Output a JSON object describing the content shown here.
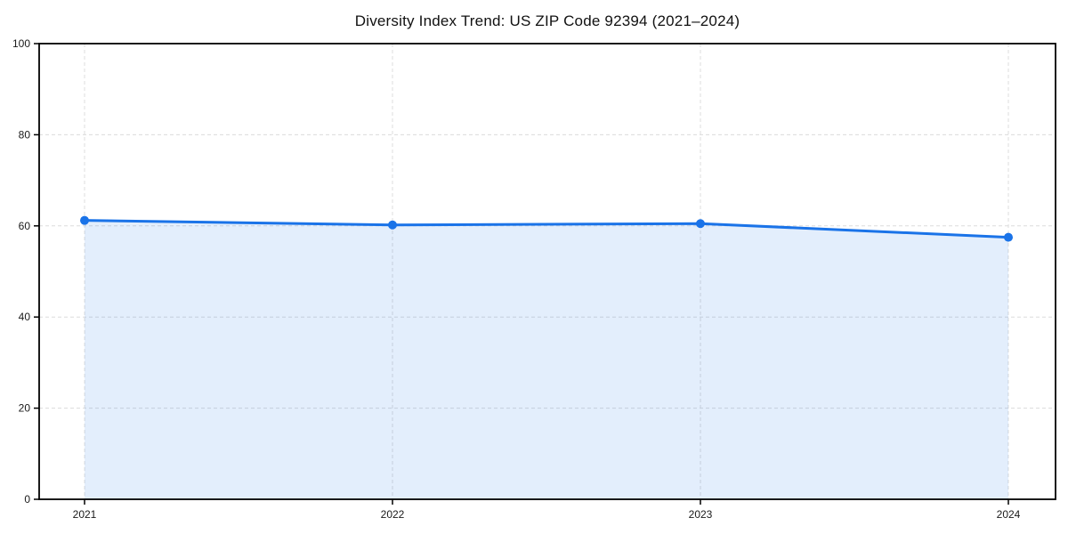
{
  "chart_data": {
    "type": "line",
    "title": "Diversity Index Trend: US ZIP Code 92394 (2021–2024)",
    "categories": [
      "2021",
      "2022",
      "2023",
      "2024"
    ],
    "values": [
      61.2,
      60.2,
      60.5,
      57.5
    ],
    "series_name": "Diversity Index",
    "xlabel": "",
    "ylabel": "",
    "ylim": [
      0,
      100
    ],
    "yticks": [
      0,
      20,
      40,
      60,
      80,
      100
    ],
    "grid": "dashed",
    "legend_position": "none",
    "area_fill": true,
    "colors": {
      "line": "#1a73e8",
      "marker": "#1a73e8",
      "area_fill": "rgba(26,115,232,0.12)",
      "gridline": "#dcdcdc",
      "axis": "#000000",
      "tick_text": "#1a1a1a",
      "background": "#ffffff"
    }
  }
}
